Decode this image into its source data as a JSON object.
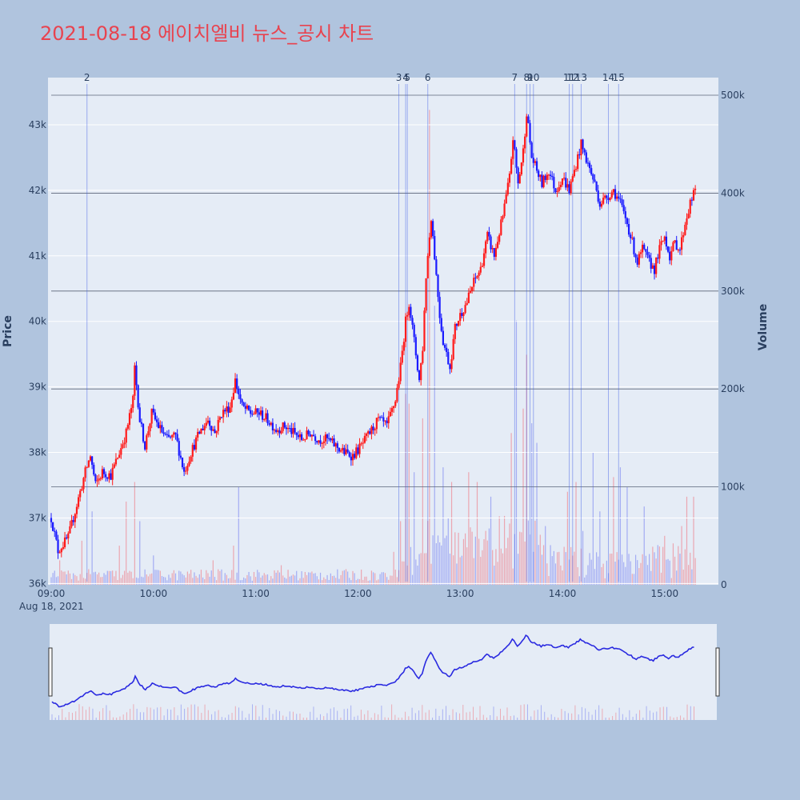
{
  "title": "2021-08-18 에이치엘비 뉴스_공시 차트",
  "chart_data": {
    "type": "candlestick",
    "date_label": "Aug 18, 2021",
    "x_ticks": [
      "09:00",
      "10:00",
      "11:00",
      "12:00",
      "13:00",
      "14:00",
      "15:00"
    ],
    "price_axis": {
      "label": "Price",
      "ticks": [
        "36k",
        "37k",
        "38k",
        "39k",
        "40k",
        "41k",
        "42k",
        "43k"
      ],
      "range": [
        35980,
        43720
      ]
    },
    "volume_axis": {
      "label": "Volume",
      "ticks": [
        "0",
        "100k",
        "200k",
        "300k",
        "400k",
        "500k"
      ],
      "range": [
        0,
        518000
      ]
    },
    "time_range": [
      "09:00",
      "15:30"
    ],
    "news_markers": [
      {
        "label": "2",
        "time": "09:21"
      },
      {
        "label": "3",
        "time": "12:24"
      },
      {
        "label": "4",
        "time": "12:28"
      },
      {
        "label": "5",
        "time": "12:29"
      },
      {
        "label": "6",
        "time": "12:41"
      },
      {
        "label": "7",
        "time": "13:32"
      },
      {
        "label": "8",
        "time": "13:39"
      },
      {
        "label": "9",
        "time": "13:41"
      },
      {
        "label": "10",
        "time": "13:43"
      },
      {
        "label": "11",
        "time": "14:04"
      },
      {
        "label": "12",
        "time": "14:06"
      },
      {
        "label": "13",
        "time": "14:11"
      },
      {
        "label": "14",
        "time": "14:27"
      },
      {
        "label": "15",
        "time": "14:33"
      }
    ],
    "price_path": [
      [
        "09:00",
        37000
      ],
      [
        "09:04",
        36500
      ],
      [
        "09:10",
        36700
      ],
      [
        "09:15",
        37200
      ],
      [
        "09:20",
        37700
      ],
      [
        "09:23",
        37950
      ],
      [
        "09:26",
        37500
      ],
      [
        "09:30",
        37700
      ],
      [
        "09:35",
        37650
      ],
      [
        "09:40",
        38000
      ],
      [
        "09:44",
        38300
      ],
      [
        "09:48",
        38800
      ],
      [
        "09:49",
        39300
      ],
      [
        "09:52",
        38500
      ],
      [
        "09:55",
        38100
      ],
      [
        "09:59",
        38600
      ],
      [
        "10:03",
        38400
      ],
      [
        "10:08",
        38200
      ],
      [
        "10:13",
        38250
      ],
      [
        "10:18",
        37700
      ],
      [
        "10:22",
        38000
      ],
      [
        "10:27",
        38300
      ],
      [
        "10:32",
        38500
      ],
      [
        "10:36",
        38300
      ],
      [
        "10:40",
        38600
      ],
      [
        "10:45",
        38700
      ],
      [
        "10:48",
        39100
      ],
      [
        "10:52",
        38700
      ],
      [
        "10:57",
        38600
      ],
      [
        "11:02",
        38600
      ],
      [
        "11:07",
        38500
      ],
      [
        "11:12",
        38350
      ],
      [
        "11:17",
        38400
      ],
      [
        "11:22",
        38300
      ],
      [
        "11:27",
        38200
      ],
      [
        "11:32",
        38300
      ],
      [
        "11:37",
        38200
      ],
      [
        "11:42",
        38200
      ],
      [
        "11:47",
        38100
      ],
      [
        "11:52",
        38000
      ],
      [
        "11:57",
        37950
      ],
      [
        "12:02",
        38100
      ],
      [
        "12:07",
        38300
      ],
      [
        "12:12",
        38500
      ],
      [
        "12:17",
        38400
      ],
      [
        "12:22",
        38800
      ],
      [
        "12:25",
        39300
      ],
      [
        "12:28",
        40000
      ],
      [
        "12:30",
        40300
      ],
      [
        "12:33",
        39700
      ],
      [
        "12:36",
        39100
      ],
      [
        "12:38",
        39600
      ],
      [
        "12:40",
        40700
      ],
      [
        "12:43",
        41600
      ],
      [
        "12:45",
        41000
      ],
      [
        "12:48",
        40100
      ],
      [
        "12:50",
        39700
      ],
      [
        "12:54",
        39300
      ],
      [
        "12:57",
        39900
      ],
      [
        "13:00",
        40100
      ],
      [
        "13:04",
        40300
      ],
      [
        "13:08",
        40600
      ],
      [
        "13:12",
        40800
      ],
      [
        "13:16",
        41300
      ],
      [
        "13:20",
        41000
      ],
      [
        "13:25",
        41600
      ],
      [
        "13:29",
        42200
      ],
      [
        "13:31",
        42800
      ],
      [
        "13:34",
        42100
      ],
      [
        "13:37",
        42600
      ],
      [
        "13:39",
        43200
      ],
      [
        "13:42",
        42500
      ],
      [
        "13:45",
        42300
      ],
      [
        "13:48",
        42100
      ],
      [
        "13:52",
        42300
      ],
      [
        "13:56",
        42000
      ],
      [
        "14:00",
        42200
      ],
      [
        "14:04",
        42000
      ],
      [
        "14:08",
        42400
      ],
      [
        "14:11",
        42700
      ],
      [
        "14:15",
        42400
      ],
      [
        "14:19",
        42100
      ],
      [
        "14:22",
        41800
      ],
      [
        "14:26",
        41900
      ],
      [
        "14:30",
        42000
      ],
      [
        "14:34",
        41800
      ],
      [
        "14:38",
        41500
      ],
      [
        "14:41",
        41200
      ],
      [
        "14:44",
        40900
      ],
      [
        "14:47",
        41100
      ],
      [
        "14:51",
        40900
      ],
      [
        "14:54",
        40800
      ],
      [
        "14:57",
        41100
      ],
      [
        "15:00",
        41300
      ],
      [
        "15:03",
        41000
      ],
      [
        "15:06",
        41200
      ],
      [
        "15:09",
        41100
      ],
      [
        "15:12",
        41500
      ],
      [
        "15:15",
        41800
      ],
      [
        "15:18",
        42000
      ]
    ],
    "volume_spikes": [
      [
        "09:05",
        25000
      ],
      [
        "09:18",
        45000
      ],
      [
        "09:24",
        75000
      ],
      [
        "09:40",
        40000
      ],
      [
        "09:44",
        85000
      ],
      [
        "09:49",
        105000
      ],
      [
        "09:52",
        65000
      ],
      [
        "10:00",
        30000
      ],
      [
        "10:35",
        25000
      ],
      [
        "10:47",
        40000
      ],
      [
        "10:50",
        100000
      ],
      [
        "11:15",
        20000
      ],
      [
        "12:25",
        65000
      ],
      [
        "12:28",
        195000
      ],
      [
        "12:30",
        185000
      ],
      [
        "12:33",
        115000
      ],
      [
        "12:38",
        170000
      ],
      [
        "12:42",
        485000
      ],
      [
        "12:45",
        285000
      ],
      [
        "12:50",
        120000
      ],
      [
        "12:55",
        105000
      ],
      [
        "13:05",
        115000
      ],
      [
        "13:10",
        105000
      ],
      [
        "13:18",
        90000
      ],
      [
        "13:23",
        70000
      ],
      [
        "13:30",
        155000
      ],
      [
        "13:33",
        270000
      ],
      [
        "13:37",
        180000
      ],
      [
        "13:39",
        235000
      ],
      [
        "13:42",
        165000
      ],
      [
        "13:45",
        145000
      ],
      [
        "13:50",
        60000
      ],
      [
        "14:03",
        95000
      ],
      [
        "14:08",
        105000
      ],
      [
        "14:12",
        55000
      ],
      [
        "14:18",
        135000
      ],
      [
        "14:22",
        75000
      ],
      [
        "14:30",
        110000
      ],
      [
        "14:34",
        120000
      ],
      [
        "14:38",
        100000
      ],
      [
        "14:48",
        80000
      ],
      [
        "15:00",
        50000
      ],
      [
        "15:10",
        60000
      ],
      [
        "15:13",
        90000
      ],
      [
        "15:17",
        90000
      ],
      [
        "15:21",
        60000
      ]
    ]
  }
}
